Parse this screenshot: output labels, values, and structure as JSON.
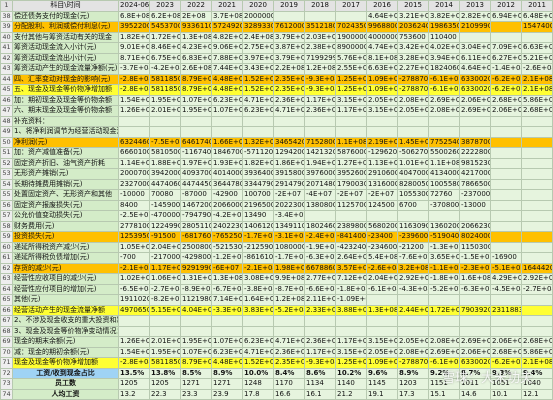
{
  "table": {
    "corner": "1",
    "header": "科目\\时间",
    "columns": [
      "2024-06-3",
      "2023",
      "2022",
      "2021",
      "2020",
      "2019",
      "2018",
      "2017",
      "2016",
      "2015",
      "2014",
      "2013",
      "2012",
      "2011"
    ],
    "rows": [
      {
        "num": "38",
        "label": "偿还债务支付的现金(元)",
        "cells": [
          "6.8E+08",
          "6.2E+08",
          "2E+08",
          "3.7E+08",
          "2000000",
          null,
          null,
          null,
          "4.64E+08",
          "3.21E+08",
          "3.82E+08",
          "2.82E+08",
          "6.94E+08",
          "6.48E+08"
        ]
      },
      {
        "num": "39",
        "label": "分配股利、利润或偿付利息(元)",
        "cells": [
          "39522000",
          "54537000",
          "93361100",
          "57249200",
          "32893300",
          "7612000",
          "35121800",
          "70243500",
          "9968800",
          "20362400",
          "19863500",
          "21099900",
          null,
          "15474000"
        ]
      },
      {
        "num": "40",
        "label": "支付其他与筹资活动有关的现金",
        "cells": [
          "1.82E+08",
          "1.72E+08",
          "1.3E+08",
          "4.82E+08",
          "2.4E+08",
          "3.79E+08",
          "2.03E+08",
          "19000000",
          "4000000",
          "753600",
          "110400",
          null,
          null,
          null
        ]
      },
      {
        "num": "41",
        "label": "筹资活动现金流入小计(元)",
        "cells": [
          "9.01E+08",
          "8.46E+08",
          "4.23E+08",
          "9.06E+08",
          "2.75E+08",
          "3.87E+08",
          "2.38E+08",
          "89000000",
          "4.74E+08",
          "3.42E+08",
          "4.02E+08",
          "3.04E+08",
          "7.09E+08",
          "6.63E+08"
        ]
      },
      {
        "num": "42",
        "label": "筹资活动现金流出小计(元)",
        "cells": [
          "8.71E+08",
          "6.75E+08",
          "6.83E+08",
          "7.88E+08",
          "3.97E+08",
          "3.79E+08",
          "71992990",
          "5.76E+08",
          "8.1E+08",
          "3.28E+08",
          "3.94E+08",
          "6.11E+08",
          "6.27E+08",
          "5.21E+08"
        ]
      },
      {
        "num": "43",
        "label": "筹资活动产生的现金流量净额(元)",
        "cells": [
          "-3.7E+08",
          "-4.2E+08",
          "2.6E+08",
          "7.44E+08",
          "3.43E+08",
          "2.2E+08",
          "1.2E+08",
          "2.55E+08",
          "6.63E+08",
          "2.27E+08",
          "18240600",
          "4.64E+08",
          "-1.4E+08",
          "-2.6E+08"
        ]
      },
      {
        "num": "44",
        "label": "四、汇率变动对现金的影响(元)",
        "cells": [
          "-2.8E+08",
          "58118500",
          "8.79E+08",
          "4.48E+08",
          "1.52E+08",
          "2.35E+08",
          "-9.3E+08",
          "1.25E+09",
          "1.09E+08",
          "-2788700",
          "-6.1E+07",
          "63300200",
          "-6.2E+07",
          "2.1E+08"
        ]
      },
      {
        "num": "45",
        "label": "五、现金及现金等价物净增加额",
        "cells": [
          "-2.8E+08",
          "58118500",
          "8.79E+08",
          "4.48E+08",
          "1.52E+08",
          "2.35E+08",
          "-9.3E+08",
          "1.25E+09",
          "1.09E+08",
          "-2788700",
          "-6.1E+07",
          "63300200",
          "-6.2E+07",
          "2.1E+08"
        ]
      },
      {
        "num": "46",
        "label": "加：期初现金及现金等价物余额",
        "cells": [
          "1.54E+09",
          "1.95E+09",
          "1.07E+09",
          "6.23E+08",
          "4.71E+08",
          "2.36E+08",
          "1.17E+09",
          "3.15E+08",
          "2.05E+08",
          "2.08E+08",
          "2.69E+08",
          "2.06E+08",
          "2.68E+08",
          "5.86E+07"
        ]
      },
      {
        "num": "47",
        "label": "六、期末现金及现金等价物余额",
        "cells": [
          "1.26E+09",
          "2.01E+09",
          "1.95E+09",
          "1.07E+09",
          "6.23E+08",
          "4.71E+08",
          "2.36E+08",
          "1.17E+09",
          "3.15E+08",
          "2.05E+08",
          "2.08E+08",
          "2.69E+08",
          "2.06E+08",
          "2.68E+08"
        ]
      },
      {
        "num": "48",
        "label": "补充资料：",
        "cells": [
          null,
          null,
          null,
          null,
          null,
          null,
          null,
          null,
          null,
          null,
          null,
          null,
          null,
          null
        ]
      },
      {
        "num": "49",
        "label": "1、将净利润调节为经营活动现金流量：(元)",
        "cells": [
          null,
          null,
          null,
          null,
          null,
          null,
          null,
          null,
          null,
          null,
          null,
          null,
          null,
          null
        ]
      },
      {
        "num": "50",
        "label": "净利润(元)",
        "cells": [
          "63244600",
          "-7.5E+07",
          "64617400",
          "1.66E+08",
          "1.32E+08",
          "34654200",
          "7152800",
          "1.1E+08",
          "2.19E+08",
          "1.45E+08",
          "77525400",
          "38787000",
          null,
          null
        ]
      },
      {
        "num": "51",
        "label": "加：资产减值准备(元)",
        "cells": [
          "6660100",
          "5810500",
          "-1167400",
          "18467000",
          "-571120",
          "1294200",
          "14213200",
          "5876000",
          "-1296200",
          "-5062700",
          "5500260",
          "2222800",
          null,
          null
        ]
      },
      {
        "num": "52",
        "label": "固定资产折旧、油气资产折耗",
        "cells": [
          "1.14E+08",
          "1.88E+08",
          "1.97E+08",
          "1.93E+08",
          "1.82E+08",
          "1.86E+08",
          "1.94E+08",
          "1.27E+08",
          "1.13E+08",
          "1.01E+08",
          "1.1E+08",
          "98152300",
          null,
          null
        ]
      },
      {
        "num": "53",
        "label": "无形资产摊销(元)",
        "cells": [
          "2000700",
          "3942000",
          "4093700",
          "4014000",
          "3936400",
          "3915800",
          "3976000",
          "3952600",
          "2910600",
          "4047000",
          "4134000",
          "4217000",
          null,
          null
        ]
      },
      {
        "num": "54",
        "label": "长期待摊费用摊销(元)",
        "cells": [
          "23270000",
          "44740600",
          "44744500",
          "36447800",
          "33447900",
          "29147900",
          "20714800",
          "17900300",
          "13160000",
          "8280050",
          "10055800",
          "7866500",
          null,
          null
        ]
      },
      {
        "num": "55",
        "label": "处置固定资产、无形资产和其他",
        "cells": [
          "-10000",
          "70080",
          "-87000",
          "-42900",
          "100700",
          "-2E+07",
          "-4E+07",
          "-2E+07",
          "-2E+07",
          "1055300",
          "72760",
          "-2370000",
          null,
          null
        ]
      },
      {
        "num": "56",
        "label": "固定资产报废损失(元)",
        "cells": [
          "8400",
          "-145900",
          "1467200",
          "2066000",
          "2196500",
          "2022300",
          "1380800",
          "1125700",
          "124500",
          "6700",
          "-370800",
          "-13000",
          null,
          null
        ]
      },
      {
        "num": "57",
        "label": "公允价值变动损失(元)",
        "cells": [
          "-2.5E+07",
          "-470000",
          "-7947900",
          "-4.2E+07",
          "13490",
          "-3.4E+07",
          null,
          null,
          null,
          null,
          null,
          null,
          null,
          null
        ]
      },
      {
        "num": "58",
        "label": "财务费用(元)",
        "cells": [
          "2778100",
          "12249900",
          "28051100",
          "24022300",
          "14061200",
          "13491100",
          "18024600",
          "2389800",
          "5680200",
          "11630900",
          "13602000",
          "20662300",
          null,
          null
        ]
      },
      {
        "num": "59",
        "label": "投资损失(元)",
        "cells": [
          "12539500",
          "-91500",
          "-6817600",
          "-7652500",
          "-1.7E+07",
          "-3.1E+07",
          "-2.4E+07",
          "-841400",
          "-23400",
          "-239600",
          "-5190400",
          "8024000",
          null,
          null
        ]
      },
      {
        "num": "60",
        "label": "递延所得税资产减少(元)",
        "cells": [
          "1.05E+08",
          "2.04E+08",
          "2500800",
          "-5215300",
          "-2125900",
          "1080000",
          "-1.9E+07",
          "-4232400",
          "-2346000",
          "-21200",
          "-1.3E+07",
          "1150300",
          null,
          null
        ]
      },
      {
        "num": "61",
        "label": "递延所得税负债增加(元)",
        "cells": [
          "-700",
          "-2170000",
          "-429800",
          "-1.2E+07",
          "-8616100",
          "-1.7E+07",
          "-6.3E+07",
          "2.64E+08",
          "5.4E+08",
          "-7.6E+07",
          "3.65E+07",
          "-1.5E+07",
          "-16900",
          null
        ]
      },
      {
        "num": "62",
        "label": "存货的减少(元)",
        "cells": [
          "-2.1E+07",
          "1.17E+08",
          "92919900",
          "-6E+07",
          "-2.1E+08",
          "1.98E+08",
          "66788600",
          "3.57E+08",
          "-2.6E+08",
          "3.2E+08",
          "-1.1E+07",
          "-2.3E+07",
          "-5.1E+07",
          "16444200"
        ]
      },
      {
        "num": "63",
        "label": "经营性应收项目的减少(元)",
        "cells": [
          "1.02E+09",
          "1.06E+09",
          "1.31E+08",
          "1.3E+08",
          "3.08E+08",
          "9.9E+08",
          "2.77E+08",
          "7.12E+08",
          "2.04E+08",
          "2.92E+08",
          "-1.8E+08",
          "1.6E+08",
          "4.29E+08",
          "2.92E+08"
        ]
      },
      {
        "num": "64",
        "label": "经营性应付项目的增加(元)",
        "cells": [
          "-6.5E+08",
          "-2.7E+08",
          "-8.9E+07",
          "-6.7E+08",
          "-3.8E+08",
          "-8.7E+08",
          "-6.6E+08",
          "-1.8E+08",
          "-6.1E+08",
          "-4.3E+08",
          "-5.2E+07",
          "-6.3E+07",
          "-4.5E+08",
          "-2.7E+08"
        ]
      },
      {
        "num": "65",
        "label": "其他(元)",
        "cells": [
          "19110200",
          "-8.2E+07",
          "11219800",
          "7.14E+07",
          "1.64E+08",
          "1.2E+08",
          "2.11E+08",
          "-1.09E+08",
          null,
          null,
          null,
          null,
          null,
          null
        ]
      },
      {
        "num": "66",
        "label": "经营活动产生的现金流量净额",
        "cells": [
          "49706500",
          "5.15E+08",
          "4.04E+08",
          "-3.3E+08",
          "3.83E+08",
          "-5.2E+08",
          "2.33E+08",
          "3.88E+08",
          "1.3E+08",
          "2.44E+08",
          "1.72E+08",
          "79039200",
          "23118830",
          null
        ]
      },
      {
        "num": "67",
        "label": "2、不涉及现金收支的重大投资和筹资活动：(元)",
        "cells": [
          null,
          null,
          null,
          null,
          null,
          null,
          null,
          null,
          null,
          null,
          null,
          null,
          null,
          null
        ]
      },
      {
        "num": "68",
        "label": "3、现金及现金等价物净变动情况：(元)",
        "cells": [
          null,
          null,
          null,
          null,
          null,
          null,
          null,
          null,
          null,
          null,
          null,
          null,
          null,
          null
        ]
      },
      {
        "num": "69",
        "label": "现金的期末余额(元)",
        "cells": [
          "1.26E+09",
          "2.01E+09",
          "1.95E+09",
          "1.07E+09",
          "6.23E+08",
          "4.71E+08",
          "2.36E+08",
          "1.17E+09",
          "3.15E+08",
          "2.05E+08",
          "2.08E+08",
          "2.69E+08",
          "2.06E+08",
          "2.68E+08"
        ]
      },
      {
        "num": "70",
        "label": "减：现金的期初余额(元)",
        "cells": [
          "1.54E+09",
          "1.95E+09",
          "1.07E+09",
          "6.23E+08",
          "4.71E+08",
          "2.36E+08",
          "1.17E+09",
          "3.15E+08",
          "2.05E+08",
          "2.08E+08",
          "2.69E+08",
          "2.06E+08",
          "2.68E+08",
          "5.86E+07"
        ]
      },
      {
        "num": "71",
        "label": "现金及现金等价物净增加额",
        "cells": [
          "-2.8E+08",
          "58118500",
          "8.79E+08",
          "4.48E+08",
          "1.52E+08",
          "2.35E+08",
          "-9.3E+08",
          "1.25E+09",
          "1.09E+08",
          "-2788700",
          "-6.1E+07",
          "63300200",
          "-6.2E+07",
          "2.1E+08"
        ]
      },
      {
        "num": "72",
        "label": "工资/收到现金占比",
        "cells": [
          "13.5%",
          "13.8%",
          "8.5%",
          "8.9%",
          "10.0%",
          "8.4%",
          "8.6%",
          "10.2%",
          "9.6%",
          "8.9%",
          "9.2%",
          "8.7%",
          "9.3%",
          "9.4%"
        ]
      },
      {
        "num": "73",
        "label": "员工数",
        "cells": [
          "1205",
          "1205",
          "1271",
          "1271",
          "1248",
          "1170",
          "1134",
          "1140",
          "1145",
          "1203",
          "1151",
          "1011",
          "1051",
          "1040"
        ]
      },
      {
        "num": "74",
        "label": "人均工资",
        "cells": [
          "13.2",
          "22.3",
          "23.3",
          "23.9",
          "17.8",
          "16.6",
          "16.1",
          "21.2",
          "19.1",
          "17.3",
          "15.1",
          "14.6",
          "10.1",
          "12.1"
        ]
      }
    ]
  },
  "watermark": "雪球：大米功夫"
}
